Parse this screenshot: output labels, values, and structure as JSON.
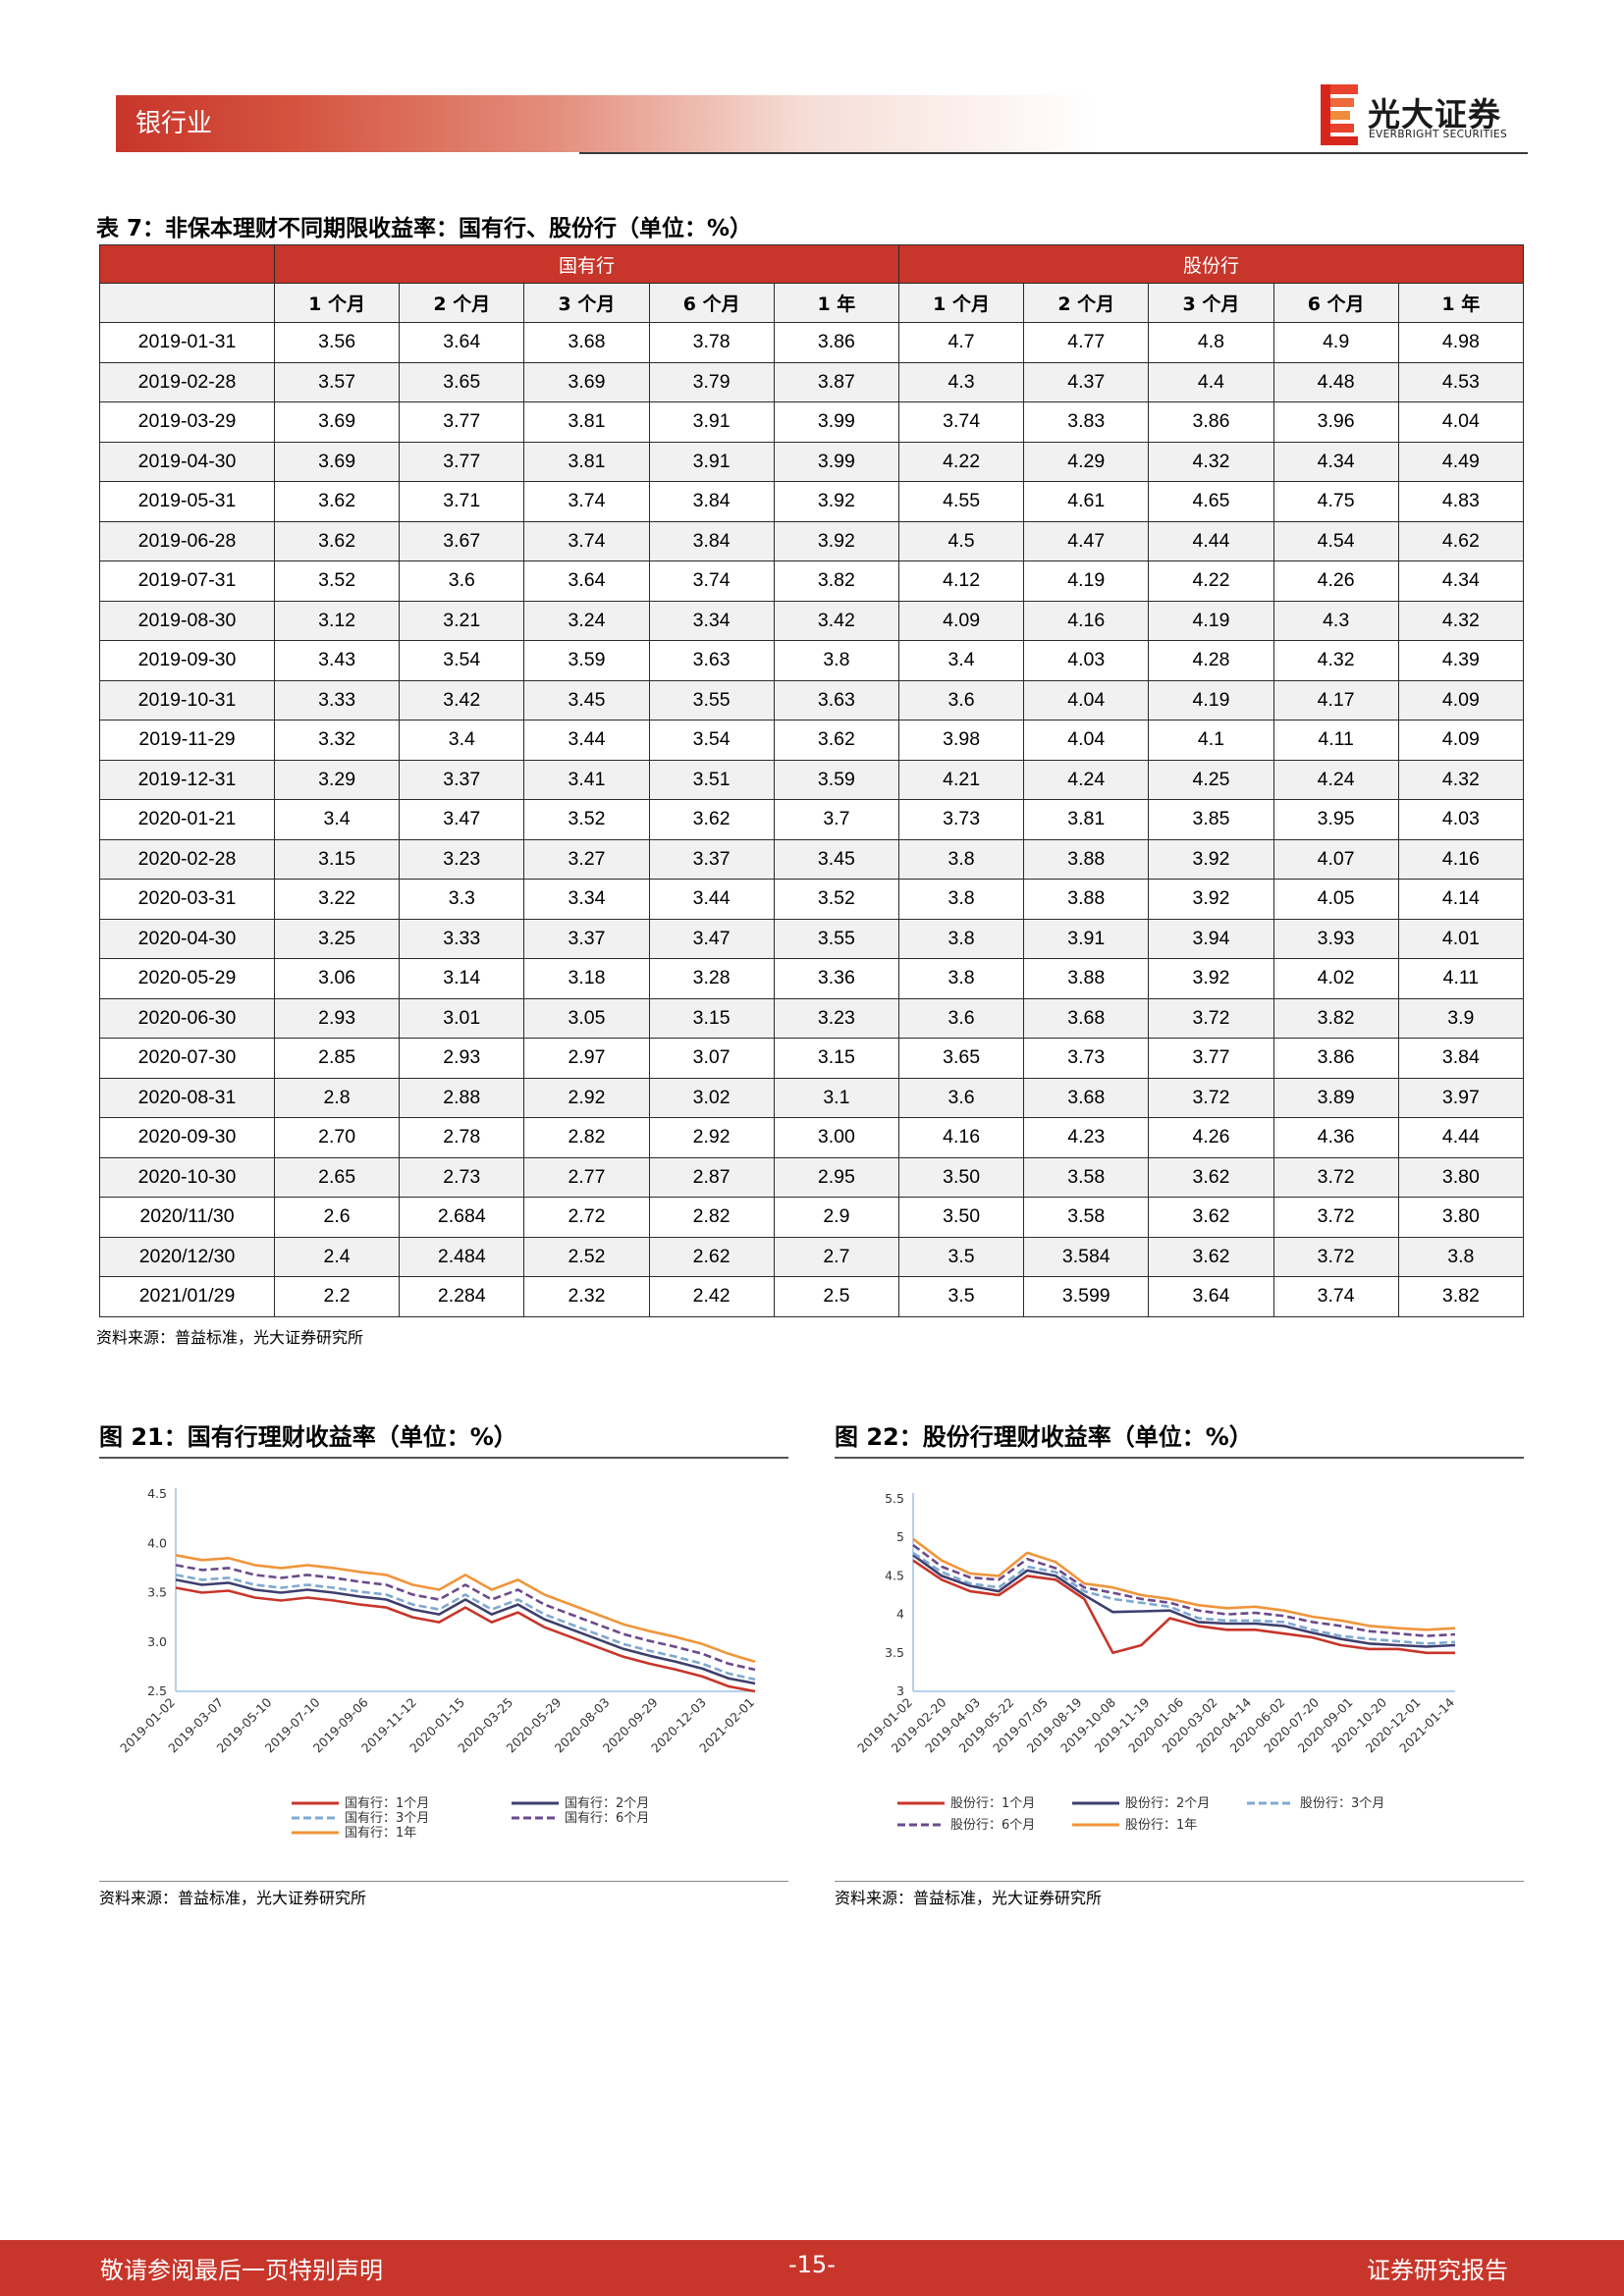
{
  "header": {
    "section": "银行业",
    "logo_cn": "光大证券",
    "logo_en": "EVERBRIGHT SECURITIES"
  },
  "table7": {
    "title": "表 7：非保本理财不同期限收益率：国有行、股份行（单位：%）",
    "groups": [
      "国有行",
      "股份行"
    ],
    "terms": [
      "1 个月",
      "2 个月",
      "3 个月",
      "6 个月",
      "1 年",
      "1 个月",
      "2 个月",
      "3 个月",
      "6 个月",
      "1 年"
    ],
    "rows": [
      [
        "2019-01-31",
        "3.56",
        "3.64",
        "3.68",
        "3.78",
        "3.86",
        "4.7",
        "4.77",
        "4.8",
        "4.9",
        "4.98"
      ],
      [
        "2019-02-28",
        "3.57",
        "3.65",
        "3.69",
        "3.79",
        "3.87",
        "4.3",
        "4.37",
        "4.4",
        "4.48",
        "4.53"
      ],
      [
        "2019-03-29",
        "3.69",
        "3.77",
        "3.81",
        "3.91",
        "3.99",
        "3.74",
        "3.83",
        "3.86",
        "3.96",
        "4.04"
      ],
      [
        "2019-04-30",
        "3.69",
        "3.77",
        "3.81",
        "3.91",
        "3.99",
        "4.22",
        "4.29",
        "4.32",
        "4.34",
        "4.49"
      ],
      [
        "2019-05-31",
        "3.62",
        "3.71",
        "3.74",
        "3.84",
        "3.92",
        "4.55",
        "4.61",
        "4.65",
        "4.75",
        "4.83"
      ],
      [
        "2019-06-28",
        "3.62",
        "3.67",
        "3.74",
        "3.84",
        "3.92",
        "4.5",
        "4.47",
        "4.44",
        "4.54",
        "4.62"
      ],
      [
        "2019-07-31",
        "3.52",
        "3.6",
        "3.64",
        "3.74",
        "3.82",
        "4.12",
        "4.19",
        "4.22",
        "4.26",
        "4.34"
      ],
      [
        "2019-08-30",
        "3.12",
        "3.21",
        "3.24",
        "3.34",
        "3.42",
        "4.09",
        "4.16",
        "4.19",
        "4.3",
        "4.32"
      ],
      [
        "2019-09-30",
        "3.43",
        "3.54",
        "3.59",
        "3.63",
        "3.8",
        "3.4",
        "4.03",
        "4.28",
        "4.32",
        "4.39"
      ],
      [
        "2019-10-31",
        "3.33",
        "3.42",
        "3.45",
        "3.55",
        "3.63",
        "3.6",
        "4.04",
        "4.19",
        "4.17",
        "4.09"
      ],
      [
        "2019-11-29",
        "3.32",
        "3.4",
        "3.44",
        "3.54",
        "3.62",
        "3.98",
        "4.04",
        "4.1",
        "4.11",
        "4.09"
      ],
      [
        "2019-12-31",
        "3.29",
        "3.37",
        "3.41",
        "3.51",
        "3.59",
        "4.21",
        "4.24",
        "4.25",
        "4.24",
        "4.32"
      ],
      [
        "2020-01-21",
        "3.4",
        "3.47",
        "3.52",
        "3.62",
        "3.7",
        "3.73",
        "3.81",
        "3.85",
        "3.95",
        "4.03"
      ],
      [
        "2020-02-28",
        "3.15",
        "3.23",
        "3.27",
        "3.37",
        "3.45",
        "3.8",
        "3.88",
        "3.92",
        "4.07",
        "4.16"
      ],
      [
        "2020-03-31",
        "3.22",
        "3.3",
        "3.34",
        "3.44",
        "3.52",
        "3.8",
        "3.88",
        "3.92",
        "4.05",
        "4.14"
      ],
      [
        "2020-04-30",
        "3.25",
        "3.33",
        "3.37",
        "3.47",
        "3.55",
        "3.8",
        "3.91",
        "3.94",
        "3.93",
        "4.01"
      ],
      [
        "2020-05-29",
        "3.06",
        "3.14",
        "3.18",
        "3.28",
        "3.36",
        "3.8",
        "3.88",
        "3.92",
        "4.02",
        "4.11"
      ],
      [
        "2020-06-30",
        "2.93",
        "3.01",
        "3.05",
        "3.15",
        "3.23",
        "3.6",
        "3.68",
        "3.72",
        "3.82",
        "3.9"
      ],
      [
        "2020-07-30",
        "2.85",
        "2.93",
        "2.97",
        "3.07",
        "3.15",
        "3.65",
        "3.73",
        "3.77",
        "3.86",
        "3.84"
      ],
      [
        "2020-08-31",
        "2.8",
        "2.88",
        "2.92",
        "3.02",
        "3.1",
        "3.6",
        "3.68",
        "3.72",
        "3.89",
        "3.97"
      ],
      [
        "2020-09-30",
        "2.70",
        "2.78",
        "2.82",
        "2.92",
        "3.00",
        "4.16",
        "4.23",
        "4.26",
        "4.36",
        "4.44"
      ],
      [
        "2020-10-30",
        "2.65",
        "2.73",
        "2.77",
        "2.87",
        "2.95",
        "3.50",
        "3.58",
        "3.62",
        "3.72",
        "3.80"
      ],
      [
        "2020/11/30",
        "2.6",
        "2.684",
        "2.72",
        "2.82",
        "2.9",
        "3.50",
        "3.58",
        "3.62",
        "3.72",
        "3.80"
      ],
      [
        "2020/12/30",
        "2.4",
        "2.484",
        "2.52",
        "2.62",
        "2.7",
        "3.5",
        "3.584",
        "3.62",
        "3.72",
        "3.8"
      ],
      [
        "2021/01/29",
        "2.2",
        "2.284",
        "2.32",
        "2.42",
        "2.5",
        "3.5",
        "3.599",
        "3.64",
        "3.74",
        "3.82"
      ]
    ],
    "source": "资料来源：普益标准，光大证券研究所"
  },
  "chart_data": [
    {
      "type": "line",
      "title": "图 21：国有行理财收益率（单位：%）",
      "ylim": [
        2.5,
        4.5
      ],
      "yticks": [
        "2.5",
        "3.0",
        "3.5",
        "4.0",
        "4.5"
      ],
      "xticks": [
        "2019-01-02",
        "2019-03-07",
        "2019-05-10",
        "2019-07-10",
        "2019-09-06",
        "2019-11-12",
        "2020-01-15",
        "2020-03-25",
        "2020-05-29",
        "2020-08-03",
        "2020-09-29",
        "2020-12-03",
        "2021-02-01"
      ],
      "series": [
        {
          "name": "国有行：1个月",
          "color": "#c8352a",
          "values": [
            3.55,
            3.5,
            3.52,
            3.45,
            3.42,
            3.45,
            3.42,
            3.38,
            3.35,
            3.25,
            3.2,
            3.35,
            3.2,
            3.3,
            3.15,
            3.05,
            2.95,
            2.85,
            2.78,
            2.72,
            2.65,
            2.55,
            2.5
          ]
        },
        {
          "name": "国有行：2个月",
          "color": "#3d3f6e",
          "values": [
            3.63,
            3.58,
            3.6,
            3.53,
            3.5,
            3.53,
            3.5,
            3.46,
            3.43,
            3.33,
            3.28,
            3.43,
            3.28,
            3.38,
            3.23,
            3.13,
            3.03,
            2.93,
            2.86,
            2.8,
            2.73,
            2.63,
            2.58
          ]
        },
        {
          "name": "国有行：3个月",
          "color": "#7ea9cf",
          "values": [
            3.68,
            3.63,
            3.65,
            3.58,
            3.55,
            3.58,
            3.55,
            3.51,
            3.48,
            3.38,
            3.33,
            3.48,
            3.33,
            3.43,
            3.28,
            3.18,
            3.08,
            2.98,
            2.91,
            2.85,
            2.78,
            2.68,
            2.62
          ]
        },
        {
          "name": "国有行：6个月",
          "color": "#6b4a8c",
          "values": [
            3.78,
            3.73,
            3.75,
            3.68,
            3.65,
            3.68,
            3.65,
            3.61,
            3.58,
            3.48,
            3.43,
            3.58,
            3.43,
            3.53,
            3.38,
            3.28,
            3.18,
            3.08,
            3.01,
            2.95,
            2.88,
            2.78,
            2.72
          ]
        },
        {
          "name": "国有行：1年",
          "color": "#f0953a",
          "values": [
            3.88,
            3.83,
            3.85,
            3.78,
            3.75,
            3.78,
            3.75,
            3.71,
            3.68,
            3.58,
            3.53,
            3.68,
            3.53,
            3.63,
            3.48,
            3.38,
            3.28,
            3.18,
            3.11,
            3.05,
            2.98,
            2.88,
            2.8
          ]
        }
      ]
    },
    {
      "type": "line",
      "title": "图 22：股份行理财收益率（单位：%）",
      "ylim": [
        3,
        5.5
      ],
      "yticks": [
        "3",
        "3.5",
        "4",
        "4.5",
        "5",
        "5.5"
      ],
      "xticks": [
        "2019-01-02",
        "2019-02-20",
        "2019-04-03",
        "2019-05-22",
        "2019-07-05",
        "2019-08-19",
        "2019-10-08",
        "2019-11-19",
        "2020-01-06",
        "2020-03-02",
        "2020-04-14",
        "2020-06-02",
        "2020-07-20",
        "2020-09-01",
        "2020-10-20",
        "2020-12-01",
        "2021-01-14"
      ],
      "series": [
        {
          "name": "股份行：1个月",
          "color": "#c8352a",
          "values": [
            4.7,
            4.45,
            4.3,
            4.25,
            4.5,
            4.45,
            4.2,
            3.5,
            3.6,
            3.95,
            3.85,
            3.8,
            3.8,
            3.75,
            3.7,
            3.6,
            3.55,
            3.55,
            3.5,
            3.5
          ]
        },
        {
          "name": "股份行：2个月",
          "color": "#3d3f6e",
          "values": [
            4.77,
            4.5,
            4.37,
            4.3,
            4.57,
            4.5,
            4.25,
            4.03,
            4.04,
            4.05,
            3.9,
            3.88,
            3.88,
            3.85,
            3.76,
            3.68,
            3.62,
            3.6,
            3.58,
            3.6
          ]
        },
        {
          "name": "股份行：3个月",
          "color": "#7ea9cf",
          "values": [
            4.8,
            4.55,
            4.4,
            4.35,
            4.62,
            4.55,
            4.3,
            4.2,
            4.15,
            4.1,
            3.95,
            3.92,
            3.92,
            3.9,
            3.8,
            3.72,
            3.68,
            3.65,
            3.62,
            3.64
          ]
        },
        {
          "name": "股份行：6个月",
          "color": "#6b4a8c",
          "values": [
            4.9,
            4.62,
            4.48,
            4.45,
            4.72,
            4.6,
            4.35,
            4.28,
            4.2,
            4.15,
            4.05,
            4.0,
            4.02,
            3.98,
            3.9,
            3.85,
            3.78,
            3.75,
            3.72,
            3.74
          ]
        },
        {
          "name": "股份行：1年",
          "color": "#f0953a",
          "values": [
            4.98,
            4.7,
            4.53,
            4.5,
            4.8,
            4.68,
            4.4,
            4.35,
            4.25,
            4.2,
            4.12,
            4.08,
            4.1,
            4.05,
            3.97,
            3.92,
            3.85,
            3.82,
            3.8,
            3.82
          ]
        }
      ]
    }
  ],
  "fig_source": "资料来源：普益标准，光大证券研究所",
  "footer": {
    "left": "敬请参阅最后一页特别声明",
    "page": "-15-",
    "right": "证券研究报告"
  }
}
